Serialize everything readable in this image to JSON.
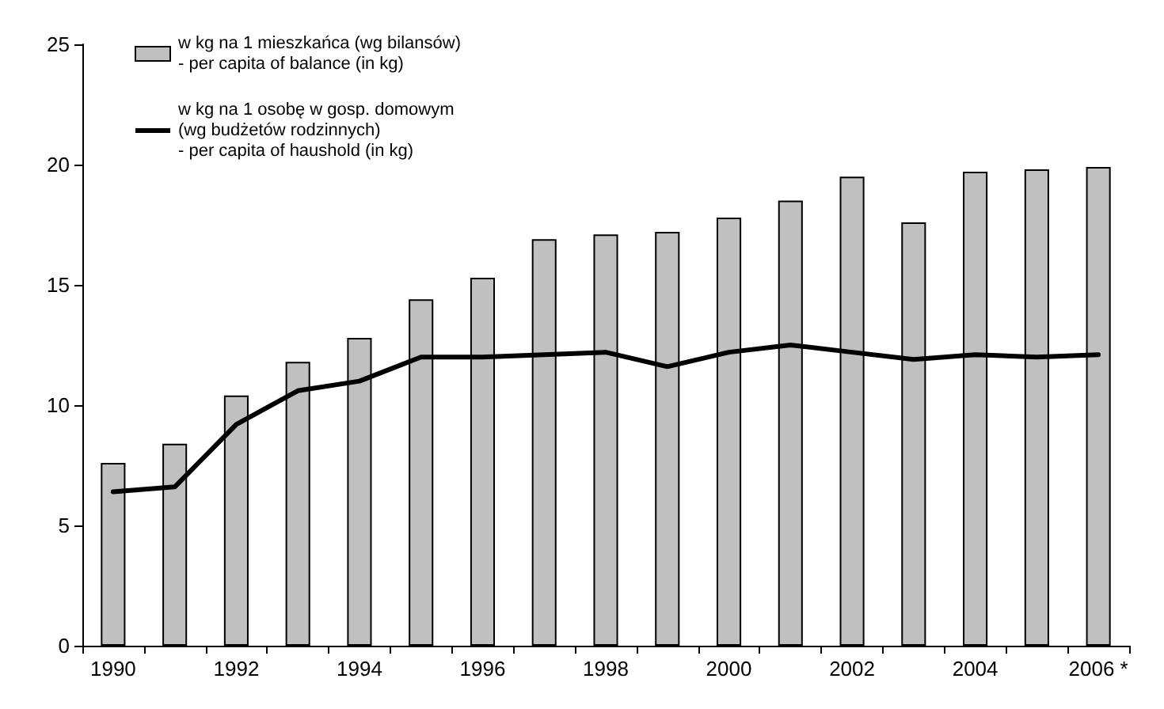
{
  "chart_data": {
    "type": "bar",
    "categories": [
      "1990",
      null,
      "1992",
      null,
      "1994",
      null,
      "1996",
      null,
      "1998",
      null,
      "2000",
      null,
      "2002",
      null,
      "2004",
      null,
      "2006 *"
    ],
    "series": [
      {
        "name": "w kg na 1 mieszkańca (wg bilansów)\n- per capita of balance (in kg)",
        "color": "#c0c0c0",
        "values": [
          7.6,
          8.4,
          10.4,
          11.8,
          12.8,
          14.4,
          15.3,
          16.9,
          17.1,
          17.2,
          17.8,
          18.5,
          19.5,
          17.6,
          19.7,
          19.8,
          19.9
        ]
      },
      {
        "name": "w kg na 1 osobę w gosp. domowym\n(wg budżetów rodzinnych)\n- per capita of haushold (in kg)",
        "type": "line",
        "color": "#000000",
        "values": [
          6.4,
          6.6,
          9.2,
          10.6,
          11.0,
          12.0,
          12.0,
          12.1,
          12.2,
          11.6,
          12.2,
          12.5,
          12.2,
          11.9,
          12.1,
          12.0,
          12.1
        ]
      }
    ],
    "ylim": [
      0,
      25
    ],
    "yticks": [
      0,
      5,
      10,
      15,
      20,
      25
    ],
    "grid": false,
    "legend": "top left",
    "marker": "none",
    "line_style": "solid"
  }
}
